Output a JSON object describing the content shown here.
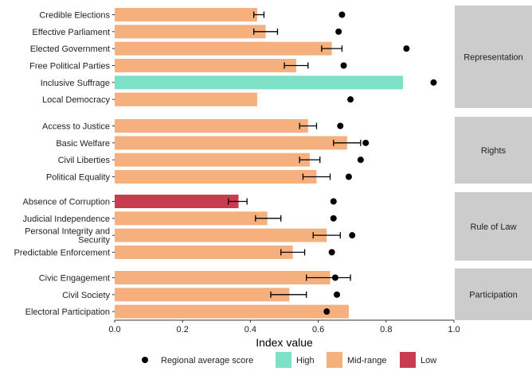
{
  "chart_data": {
    "type": "bar",
    "orientation": "horizontal",
    "xlabel": "Index value",
    "xlim": [
      0,
      1.0
    ],
    "xticks": [
      "0.0",
      "0.2",
      "0.4",
      "0.6",
      "0.8",
      "1.0"
    ],
    "xtick_values": [
      0,
      0.2,
      0.4,
      0.6,
      0.8,
      1.0
    ],
    "grid": false,
    "legend_position": "bottom",
    "colors": {
      "High": "#7fe0c8",
      "Mid-range": "#f5b07d",
      "Low": "#c83c50",
      "point": "#000000",
      "strip": "#cccccc"
    },
    "legend": {
      "point_label": "Regional average score",
      "fill_labels": [
        "High",
        "Mid-range",
        "Low"
      ]
    },
    "panels": [
      {
        "name": "Representation",
        "rows": [
          {
            "label": "Credible Elections",
            "value": 0.42,
            "level": "Mid-range",
            "err": [
              0.41,
              0.44
            ],
            "regional": 0.67
          },
          {
            "label": "Effective Parliament",
            "value": 0.445,
            "level": "Mid-range",
            "err": [
              0.41,
              0.48
            ],
            "regional": 0.66
          },
          {
            "label": "Elected Government",
            "value": 0.64,
            "level": "Mid-range",
            "err": [
              0.61,
              0.67
            ],
            "regional": 0.86
          },
          {
            "label": "Free Political Parties",
            "value": 0.535,
            "level": "Mid-range",
            "err": [
              0.5,
              0.57
            ],
            "regional": 0.675
          },
          {
            "label": "Inclusive Suffrage",
            "value": 0.85,
            "level": "High",
            "err": null,
            "regional": 0.94
          },
          {
            "label": "Local Democracy",
            "value": 0.42,
            "level": "Mid-range",
            "err": null,
            "regional": 0.695
          }
        ]
      },
      {
        "name": "Rights",
        "rows": [
          {
            "label": "Access to Justice",
            "value": 0.57,
            "level": "Mid-range",
            "err": [
              0.545,
              0.595
            ],
            "regional": 0.665
          },
          {
            "label": "Basic Welfare",
            "value": 0.685,
            "level": "Mid-range",
            "err": [
              0.645,
              0.725
            ],
            "regional": 0.74
          },
          {
            "label": "Civil Liberties",
            "value": 0.575,
            "level": "Mid-range",
            "err": [
              0.545,
              0.605
            ],
            "regional": 0.725
          },
          {
            "label": "Political Equality",
            "value": 0.595,
            "level": "Mid-range",
            "err": [
              0.555,
              0.635
            ],
            "regional": 0.69
          }
        ]
      },
      {
        "name": "Rule of Law",
        "rows": [
          {
            "label": "Absence of Corruption",
            "value": 0.365,
            "level": "Low",
            "err": [
              0.335,
              0.39
            ],
            "regional": 0.645
          },
          {
            "label": "Judicial Independence",
            "value": 0.45,
            "level": "Mid-range",
            "err": [
              0.415,
              0.49
            ],
            "regional": 0.645
          },
          {
            "label": "Personal Integrity and\nSecurity",
            "value": 0.625,
            "level": "Mid-range",
            "err": [
              0.585,
              0.665
            ],
            "regional": 0.7
          },
          {
            "label": "Predictable Enforcement",
            "value": 0.525,
            "level": "Mid-range",
            "err": [
              0.49,
              0.56
            ],
            "regional": 0.64
          }
        ]
      },
      {
        "name": "Participation",
        "rows": [
          {
            "label": "Civic Engagement",
            "value": 0.635,
            "level": "Mid-range",
            "err": [
              0.565,
              0.695
            ],
            "regional": 0.65
          },
          {
            "label": "Civil Society",
            "value": 0.515,
            "level": "Mid-range",
            "err": [
              0.46,
              0.565
            ],
            "regional": 0.655
          },
          {
            "label": "Electoral Participation",
            "value": 0.69,
            "level": "Mid-range",
            "err": null,
            "regional": 0.625
          }
        ]
      }
    ]
  }
}
